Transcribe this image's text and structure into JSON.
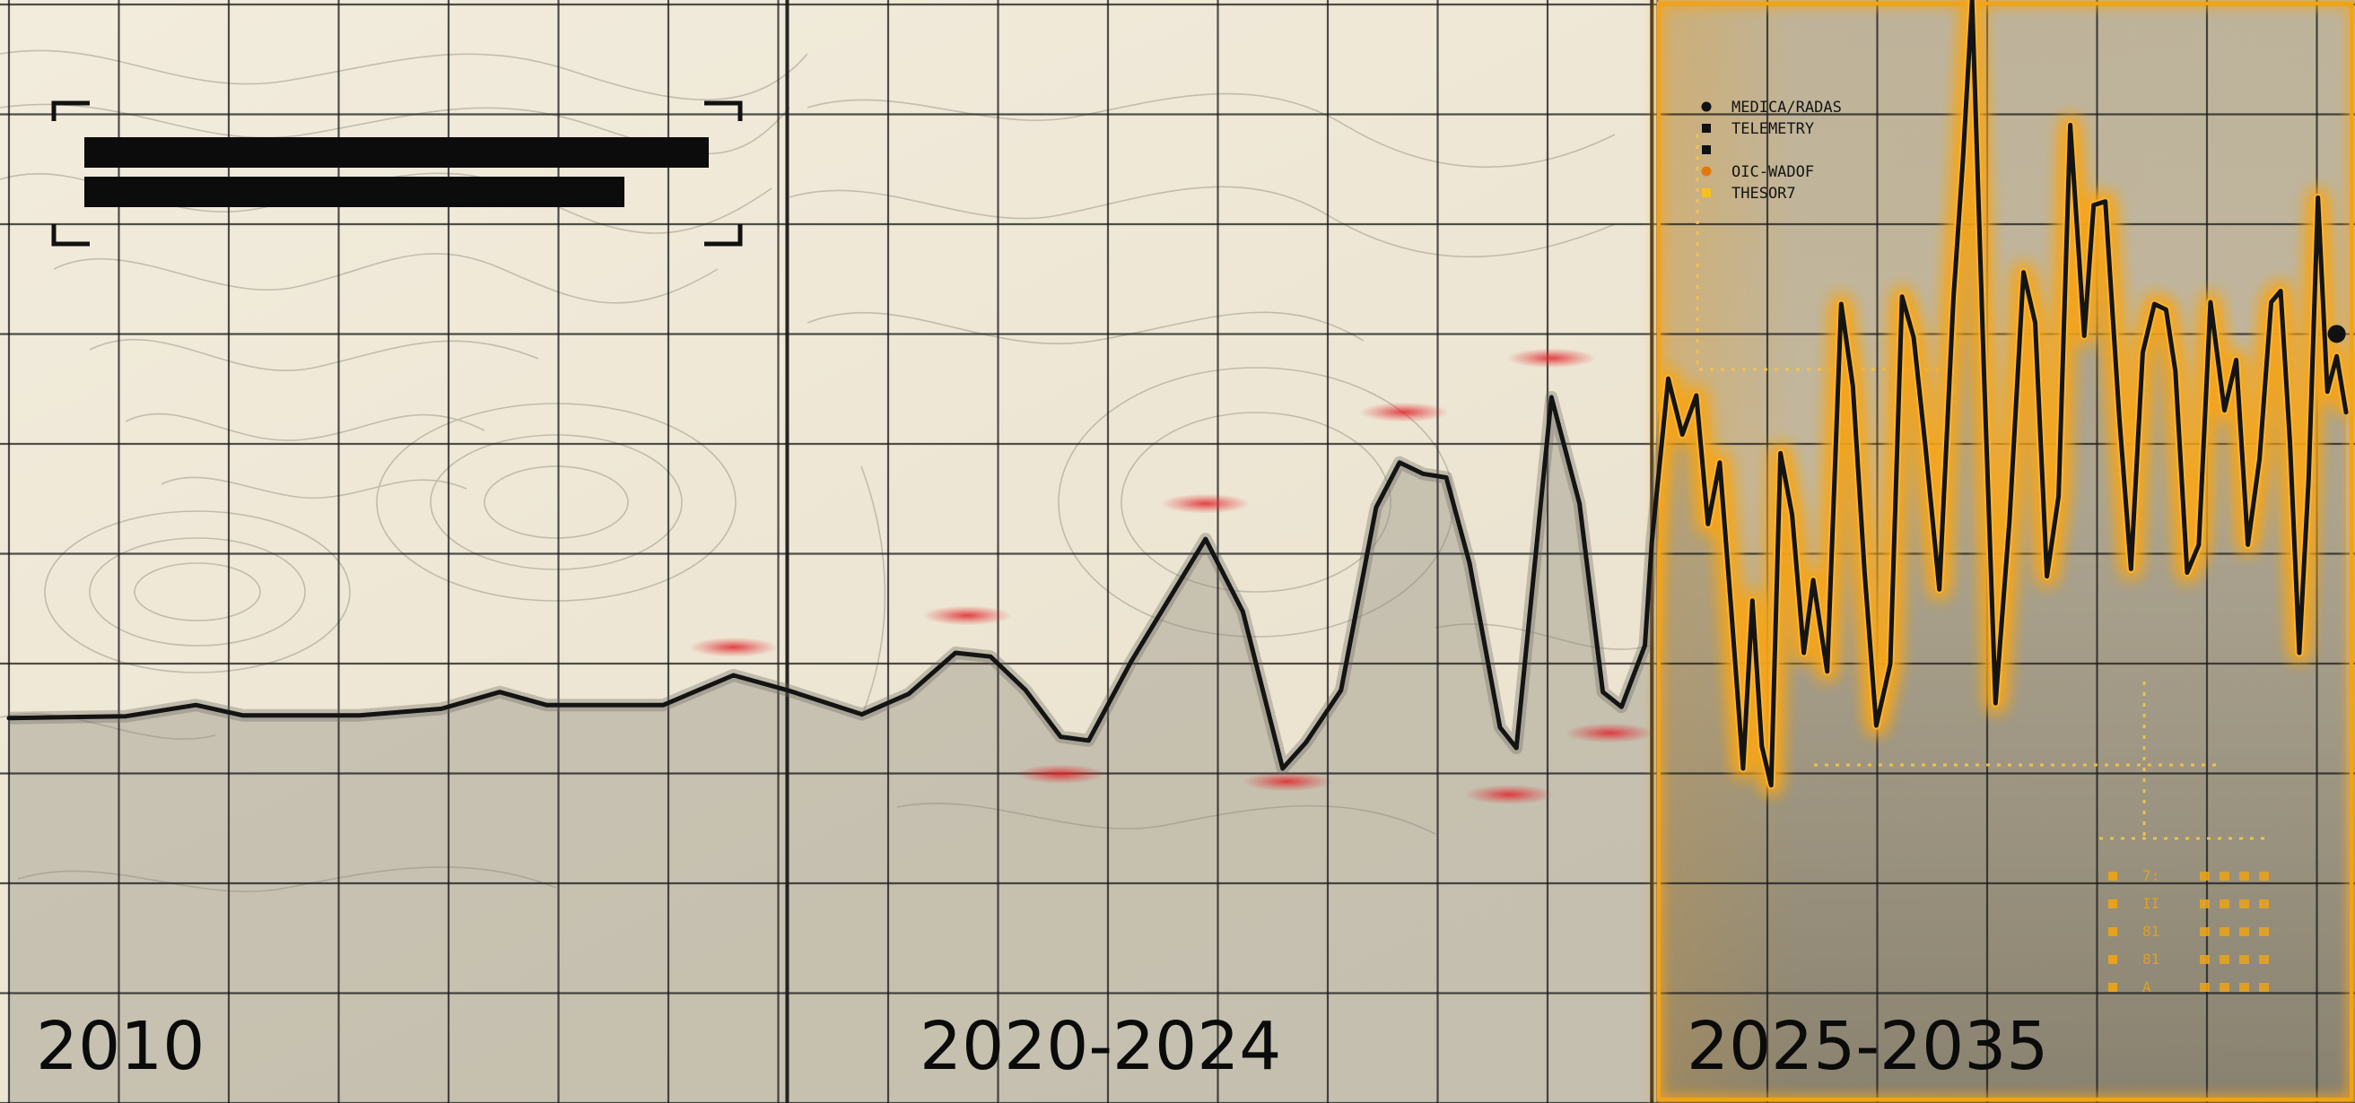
{
  "periods": [
    {
      "label": "2010"
    },
    {
      "label": "2020-2024"
    },
    {
      "label": "2025-2035"
    }
  ],
  "legend": [
    {
      "label": "MEDICA/RADAS",
      "color": "#111111"
    },
    {
      "label": "TELEMETRY",
      "color": "#111111"
    },
    {
      "label": "",
      "color": "#111111"
    },
    {
      "label": "OIC-WADOF",
      "color": "#e07a10"
    },
    {
      "label": "THESOR7",
      "color": "#f5c21a"
    }
  ],
  "side_table": {
    "rows": [
      "7:",
      "II",
      "81",
      "81",
      "A"
    ]
  },
  "colors": {
    "paper": "#efe8d6",
    "grid": "#1a1a1a",
    "line": "#141414",
    "glow": "#f6a51c",
    "highlight_peak": "#d9252b",
    "forecast_bg": "#a19c8a"
  },
  "chart_data": {
    "type": "line",
    "title": "",
    "xlabel": "",
    "ylabel": "",
    "x_range": [
      0,
      1000
    ],
    "y_range": [
      0,
      100
    ],
    "grid": true,
    "legend_position": "top-right",
    "segments": [
      {
        "period": "2010",
        "x_start": 0,
        "x_end": 333
      },
      {
        "period": "2020-2024",
        "x_start": 333,
        "x_end": 703
      },
      {
        "period": "2025-2035",
        "x_start": 703,
        "x_end": 1000
      }
    ],
    "series": [
      {
        "values_xy": [
          [
            0,
            23
          ],
          [
            50,
            23.2
          ],
          [
            80,
            24.4
          ],
          [
            100,
            23.3
          ],
          [
            150,
            23.3
          ],
          [
            185,
            24
          ],
          [
            210,
            25.8
          ],
          [
            230,
            24.4
          ],
          [
            280,
            24.4
          ],
          [
            310,
            27.6
          ],
          [
            333,
            26
          ],
          [
            365,
            23.4
          ],
          [
            385,
            25.6
          ],
          [
            405,
            30
          ],
          [
            420,
            29.6
          ],
          [
            435,
            26
          ],
          [
            450,
            21
          ],
          [
            462,
            20.6
          ],
          [
            480,
            29
          ],
          [
            495,
            35.2
          ],
          [
            512,
            42.2
          ],
          [
            528,
            34.4
          ],
          [
            545,
            17.6
          ],
          [
            555,
            20.4
          ],
          [
            570,
            26
          ],
          [
            585,
            45.6
          ],
          [
            595,
            50.4
          ],
          [
            605,
            49.2
          ],
          [
            615,
            48.8
          ],
          [
            625,
            39.6
          ],
          [
            638,
            22
          ],
          [
            645,
            19.8
          ],
          [
            660,
            57.4
          ],
          [
            672,
            46
          ],
          [
            682,
            25.8
          ],
          [
            690,
            24.2
          ],
          [
            700,
            30.8
          ],
          [
            703,
            42
          ],
          [
            710,
            59.4
          ],
          [
            716,
            53.4
          ],
          [
            722,
            57.6
          ],
          [
            727,
            43.8
          ],
          [
            732,
            50.4
          ],
          [
            737,
            34.4
          ],
          [
            742,
            17.6
          ],
          [
            746,
            35.6
          ],
          [
            750,
            20
          ],
          [
            754,
            15.8
          ],
          [
            758,
            51.4
          ],
          [
            763,
            44.8
          ],
          [
            768,
            30
          ],
          [
            772,
            37.8
          ],
          [
            778,
            28
          ],
          [
            784,
            67.4
          ],
          [
            789,
            58.6
          ],
          [
            794,
            38.6
          ],
          [
            799,
            22.2
          ],
          [
            805,
            28.8
          ],
          [
            810,
            68.2
          ],
          [
            815,
            63.8
          ],
          [
            820,
            52.2
          ],
          [
            826,
            36.8
          ],
          [
            832,
            68
          ],
          [
            836,
            82.6
          ],
          [
            840,
            100
          ],
          [
            845,
            60.8
          ],
          [
            850,
            24.6
          ],
          [
            856,
            44.2
          ],
          [
            862,
            70.8
          ],
          [
            867,
            65.4
          ],
          [
            872,
            38.2
          ],
          [
            877,
            46.8
          ],
          [
            882,
            86.6
          ],
          [
            888,
            64
          ],
          [
            892,
            78
          ],
          [
            897,
            78.4
          ],
          [
            903,
            55.2
          ],
          [
            908,
            39
          ],
          [
            913,
            62.2
          ],
          [
            918,
            67.4
          ],
          [
            923,
            66.8
          ],
          [
            927,
            60.2
          ],
          [
            932,
            38.6
          ],
          [
            937,
            41.6
          ],
          [
            942,
            67.6
          ],
          [
            948,
            56
          ],
          [
            953,
            61.4
          ],
          [
            958,
            41.6
          ],
          [
            963,
            50.8
          ],
          [
            968,
            67.6
          ],
          [
            972,
            68.8
          ],
          [
            976,
            52.6
          ],
          [
            980,
            30
          ],
          [
            984,
            48.6
          ],
          [
            988,
            78.8
          ],
          [
            992,
            58
          ],
          [
            996,
            61.8
          ],
          [
            1000,
            55.8
          ]
        ]
      }
    ],
    "highlights": [
      {
        "x": 310,
        "y": 30.6
      },
      {
        "x": 410,
        "y": 34
      },
      {
        "x": 450,
        "y": 17
      },
      {
        "x": 512,
        "y": 46
      },
      {
        "x": 547,
        "y": 16.2
      },
      {
        "x": 597,
        "y": 55.8
      },
      {
        "x": 660,
        "y": 61.6
      },
      {
        "x": 642,
        "y": 14.8
      },
      {
        "x": 685,
        "y": 21.4
      }
    ],
    "end_marker": {
      "x": 996,
      "y": 64.2
    }
  }
}
